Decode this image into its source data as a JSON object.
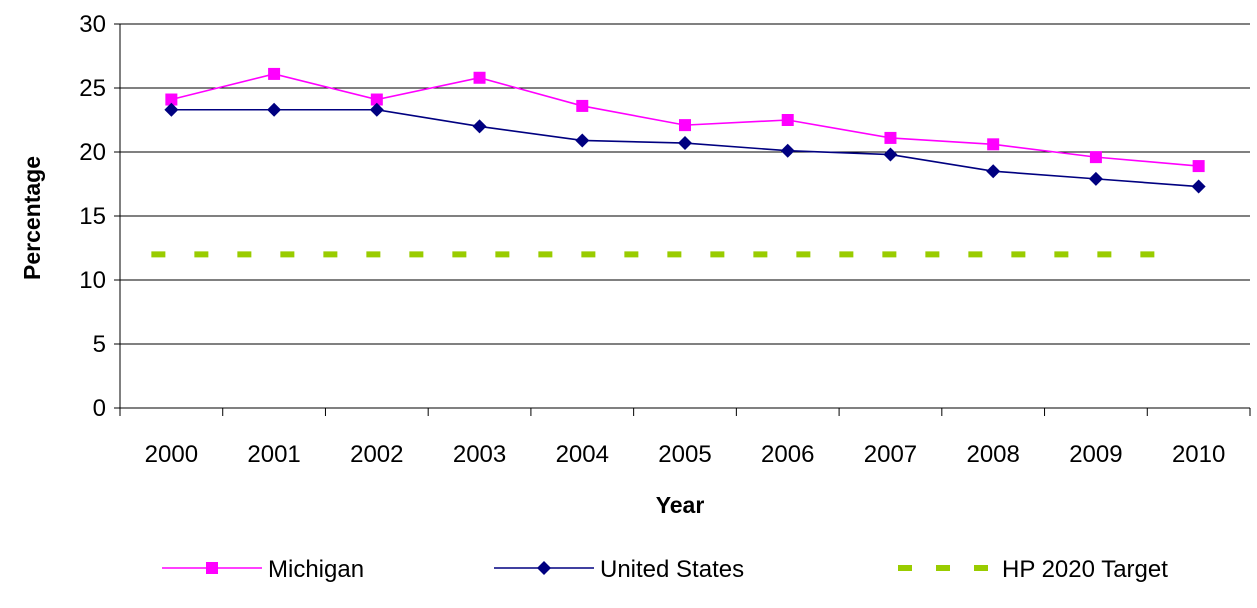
{
  "chart_data": {
    "type": "line",
    "title": "",
    "xlabel": "Year",
    "ylabel": "Percentage",
    "categories": [
      "2000",
      "2001",
      "2002",
      "2003",
      "2004",
      "2005",
      "2006",
      "2007",
      "2008",
      "2009",
      "2010"
    ],
    "ylim": [
      0,
      30
    ],
    "yticks": [
      0,
      5,
      10,
      15,
      20,
      25,
      30
    ],
    "grid": "horizontal",
    "legend": "bottom",
    "series": [
      {
        "name": "Michigan",
        "color": "#ff00ff",
        "marker": "square",
        "style": "solid",
        "values": [
          24.1,
          26.1,
          24.1,
          25.8,
          23.6,
          22.1,
          22.5,
          21.1,
          20.6,
          19.6,
          18.9
        ]
      },
      {
        "name": "United States",
        "color": "#000080",
        "marker": "diamond",
        "style": "solid",
        "values": [
          23.3,
          23.3,
          23.3,
          22.0,
          20.9,
          20.7,
          20.1,
          19.8,
          18.5,
          17.9,
          17.3
        ]
      },
      {
        "name": "HP 2020 Target",
        "color": "#99cc00",
        "marker": "none",
        "style": "dashed",
        "values": [
          12,
          12,
          12,
          12,
          12,
          12,
          12,
          12,
          12,
          12,
          12
        ]
      }
    ]
  }
}
